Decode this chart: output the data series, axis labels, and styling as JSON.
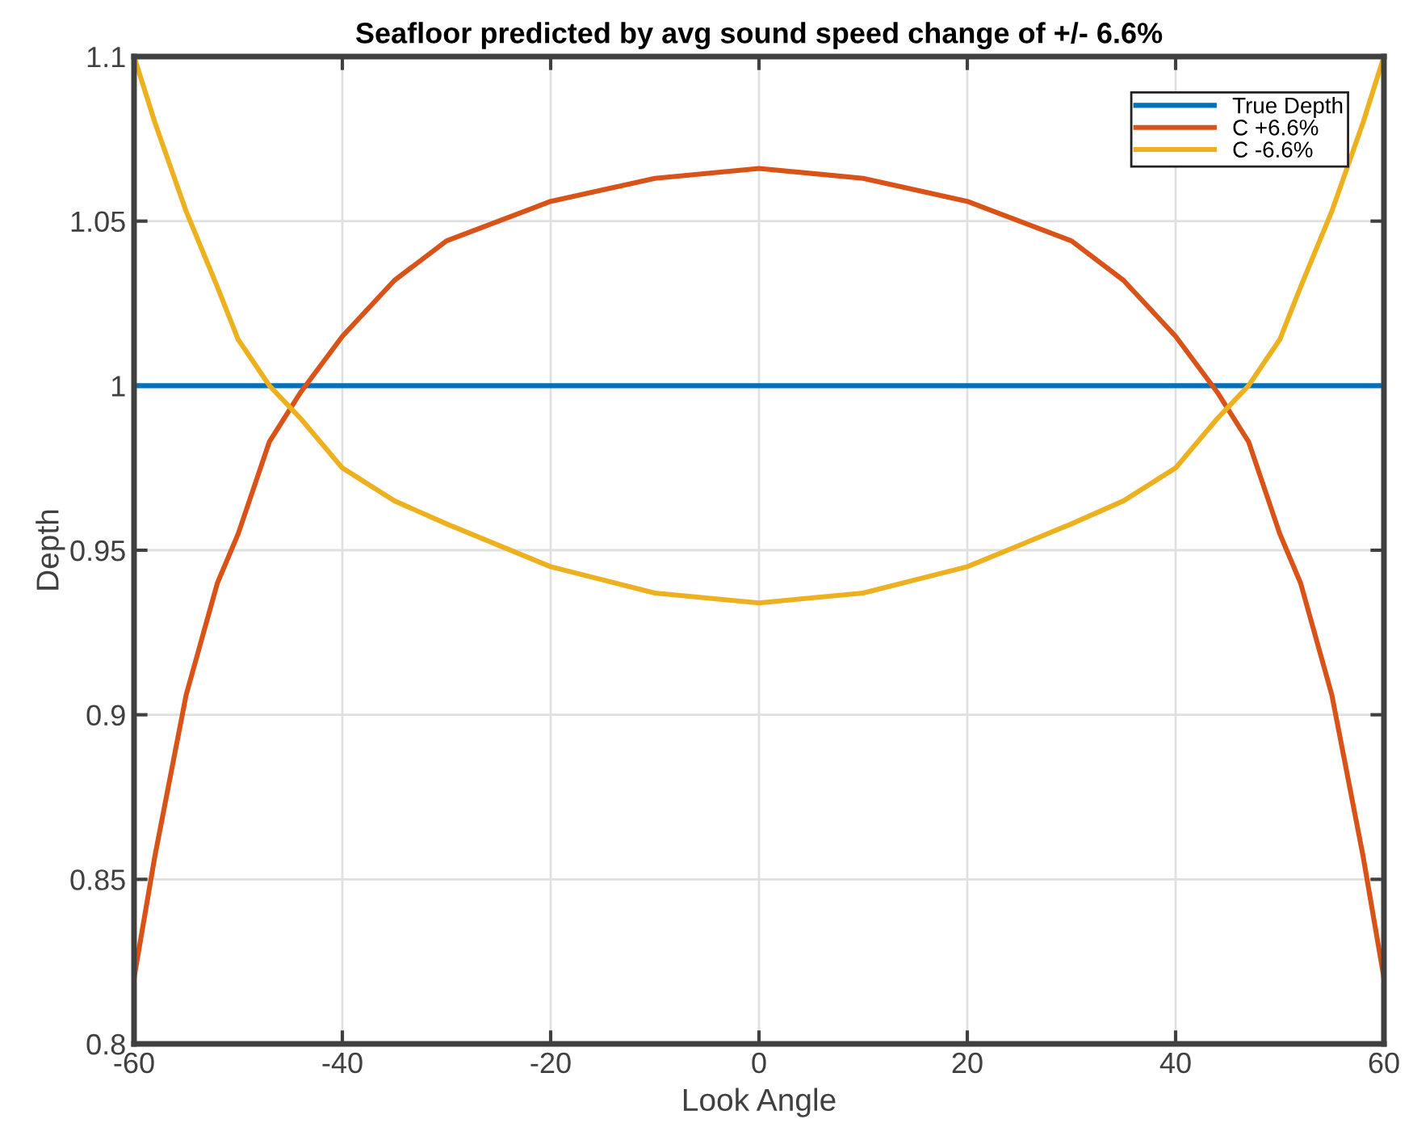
{
  "chart_data": {
    "type": "line",
    "title": "Seafloor predicted by avg sound speed change of +/- 6.6%",
    "xlabel": "Look Angle",
    "ylabel": "Depth",
    "x": [
      -60,
      -58,
      -55,
      -52,
      -50,
      -47,
      -44,
      -40,
      -35,
      -30,
      -20,
      -10,
      0,
      10,
      20,
      30,
      35,
      40,
      44,
      47,
      50,
      52,
      55,
      58,
      60
    ],
    "series": [
      {
        "name": "True Depth",
        "color": "#0072bd",
        "values": [
          1,
          1,
          1,
          1,
          1,
          1,
          1,
          1,
          1,
          1,
          1,
          1,
          1,
          1,
          1,
          1,
          1,
          1,
          1,
          1,
          1,
          1,
          1,
          1,
          1
        ]
      },
      {
        "name": "C +6.6%",
        "color": "#d95319",
        "values": [
          0.82,
          0.857,
          0.906,
          0.94,
          0.955,
          0.983,
          0.998,
          1.015,
          1.032,
          1.044,
          1.056,
          1.063,
          1.066,
          1.063,
          1.056,
          1.044,
          1.032,
          1.015,
          0.998,
          0.983,
          0.955,
          0.94,
          0.906,
          0.857,
          0.82
        ]
      },
      {
        "name": "C -6.6%",
        "color": "#edb120",
        "values": [
          1.1,
          1.08,
          1.053,
          1.03,
          1.014,
          1.0,
          0.99,
          0.975,
          0.965,
          0.958,
          0.945,
          0.937,
          0.934,
          0.937,
          0.945,
          0.958,
          0.965,
          0.975,
          0.99,
          1.0,
          1.014,
          1.03,
          1.053,
          1.08,
          1.1
        ]
      }
    ],
    "xlim": [
      -60,
      60
    ],
    "xticks": [
      -60,
      -40,
      -20,
      0,
      20,
      40,
      60
    ],
    "ylim": [
      0.8,
      1.1
    ],
    "yticks": [
      0.8,
      0.85,
      0.9,
      0.95,
      1,
      1.05,
      1.1
    ],
    "grid": true,
    "legend": "top right",
    "line_style": "solid",
    "marker": "none"
  }
}
